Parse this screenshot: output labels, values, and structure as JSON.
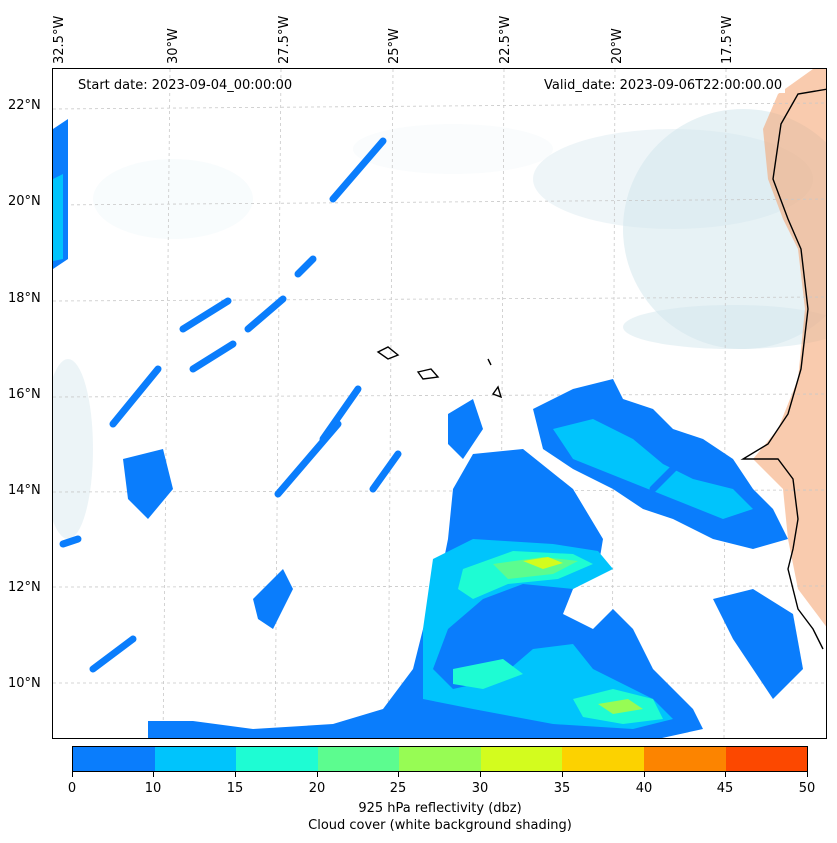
{
  "map": {
    "start_date": "Start date: 2023-09-04_00:00:00",
    "valid_date": "Valid_date: 2023-09-06T22:00:00.00",
    "lon_labels": [
      "32.5°W",
      "30°W",
      "27.5°W",
      "25°W",
      "22.5°W",
      "20°W",
      "17.5°W"
    ],
    "lat_labels": [
      "22°N",
      "20°N",
      "18°N",
      "16°N",
      "14°N",
      "12°N",
      "10°N"
    ],
    "colors": {
      "land_shading": "#f4a06b",
      "cloud_shading": "#a9cfdc",
      "coastline": "#000000",
      "gridline": "#c8c8c8"
    }
  },
  "colorbar": {
    "ticks": [
      "0",
      "10",
      "15",
      "20",
      "25",
      "30",
      "35",
      "40",
      "45",
      "50"
    ],
    "colors": [
      "#0a7dfc",
      "#00c4fc",
      "#1efcd3",
      "#5cfc8f",
      "#97fc54",
      "#d3fc1e",
      "#fcd200",
      "#fc8400",
      "#fc4800"
    ],
    "label_line1": "925 hPa reflectivity (dbz)",
    "label_line2": "Cloud cover (white background shading)"
  }
}
